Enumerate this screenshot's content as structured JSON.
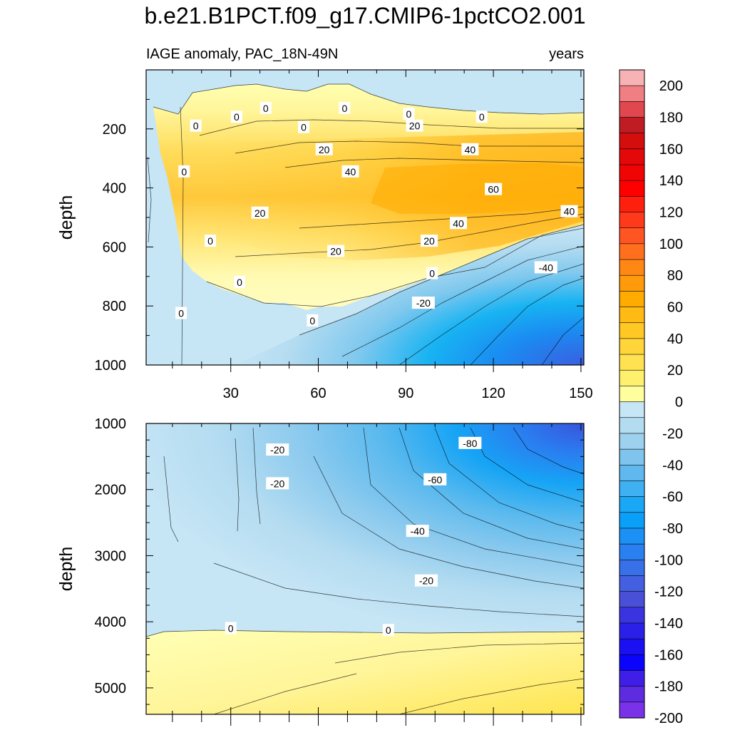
{
  "title": "b.e21.B1PCT.f09_g17.CMIP6-1pctCO2.001",
  "chart_data": [
    {
      "type": "heatmap",
      "panel": "upper",
      "subtitle_left": "IAGE anomaly, PAC_18N-49N",
      "subtitle_right": "years",
      "xlabel": "",
      "ylabel": "depth",
      "xlim": [
        1,
        151
      ],
      "ylim": [
        1000,
        0
      ],
      "xticks": [
        30,
        60,
        90,
        120,
        150
      ],
      "xtick_labels": [
        "30",
        "60",
        "90",
        "120",
        "150"
      ],
      "yticks": [
        200,
        400,
        600,
        800,
        1000
      ],
      "ytick_labels": [
        "200",
        "400",
        "600",
        "800",
        "1000"
      ],
      "contour_labels": [
        {
          "text": "0",
          "x": 42,
          "y": 130
        },
        {
          "text": "0",
          "x": 69,
          "y": 130
        },
        {
          "text": "0",
          "x": 91,
          "y": 150
        },
        {
          "text": "0",
          "x": 116,
          "y": 160
        },
        {
          "text": "0",
          "x": 32,
          "y": 160
        },
        {
          "text": "0",
          "x": 18,
          "y": 190
        },
        {
          "text": "0",
          "x": 55,
          "y": 195
        },
        {
          "text": "20",
          "x": 93,
          "y": 190
        },
        {
          "text": "20",
          "x": 62,
          "y": 270
        },
        {
          "text": "40",
          "x": 112,
          "y": 270
        },
        {
          "text": "40",
          "x": 71,
          "y": 345
        },
        {
          "text": "0",
          "x": 14,
          "y": 345
        },
        {
          "text": "60",
          "x": 120,
          "y": 405
        },
        {
          "text": "20",
          "x": 40,
          "y": 485
        },
        {
          "text": "40",
          "x": 146,
          "y": 480
        },
        {
          "text": "40",
          "x": 108,
          "y": 520
        },
        {
          "text": "0",
          "x": 23,
          "y": 580
        },
        {
          "text": "20",
          "x": 98,
          "y": 580
        },
        {
          "text": "20",
          "x": 66,
          "y": 615
        },
        {
          "text": "-40",
          "x": 138,
          "y": 670
        },
        {
          "text": "0",
          "x": 99,
          "y": 690
        },
        {
          "text": "0",
          "x": 33,
          "y": 720
        },
        {
          "text": "-20",
          "x": 96,
          "y": 790
        },
        {
          "text": "0",
          "x": 13,
          "y": 825
        },
        {
          "text": "0",
          "x": 58,
          "y": 850
        }
      ]
    },
    {
      "type": "heatmap",
      "panel": "lower",
      "ylabel": "depth",
      "xlim": [
        1,
        151
      ],
      "ylim": [
        5400,
        1000
      ],
      "yticks": [
        1000,
        2000,
        3000,
        4000,
        5000
      ],
      "ytick_labels": [
        "1000",
        "2000",
        "3000",
        "4000",
        "5000"
      ],
      "contour_labels": [
        {
          "text": "-20",
          "x": 46,
          "y": 1400
        },
        {
          "text": "-80",
          "x": 112,
          "y": 1300
        },
        {
          "text": "-20",
          "x": 46,
          "y": 1910
        },
        {
          "text": "-60",
          "x": 100,
          "y": 1850
        },
        {
          "text": "-40",
          "x": 94,
          "y": 2630
        },
        {
          "text": "-20",
          "x": 97,
          "y": 3380
        },
        {
          "text": "0",
          "x": 30,
          "y": 4100
        },
        {
          "text": "0",
          "x": 84,
          "y": 4130
        }
      ]
    }
  ],
  "colorbar": {
    "tick_labels": [
      "200",
      "180",
      "160",
      "140",
      "120",
      "100",
      "80",
      "60",
      "40",
      "20",
      "0",
      "-20",
      "-40",
      "-60",
      "-80",
      "-100",
      "-120",
      "-140",
      "-160",
      "-180",
      "-200"
    ],
    "colors": [
      "#f7b2b5",
      "#f07e82",
      "#e0474e",
      "#c01c23",
      "#d40d0d",
      "#e40808",
      "#f00404",
      "#ff0000",
      "#ff1f0f",
      "#ff3a1a",
      "#ff5522",
      "#ff6f1e",
      "#ff8714",
      "#ff9a0a",
      "#ffab00",
      "#ffbb14",
      "#ffc825",
      "#ffd53a",
      "#ffe152",
      "#fff06e",
      "#ffff9e",
      "#c6e5f5",
      "#b4dcf1",
      "#9dd1ee",
      "#7ec4ec",
      "#5fb8ee",
      "#3fb0f2",
      "#1aa7f5",
      "#0aa0f8",
      "#1b91f5",
      "#2a80f0",
      "#3870e8",
      "#4360e0",
      "#4a4fd8",
      "#3a34e0",
      "#2a20e8",
      "#1a10f2",
      "#0a05fa",
      "#3f1ee8",
      "#5d2be0",
      "#7a32e8"
    ]
  }
}
